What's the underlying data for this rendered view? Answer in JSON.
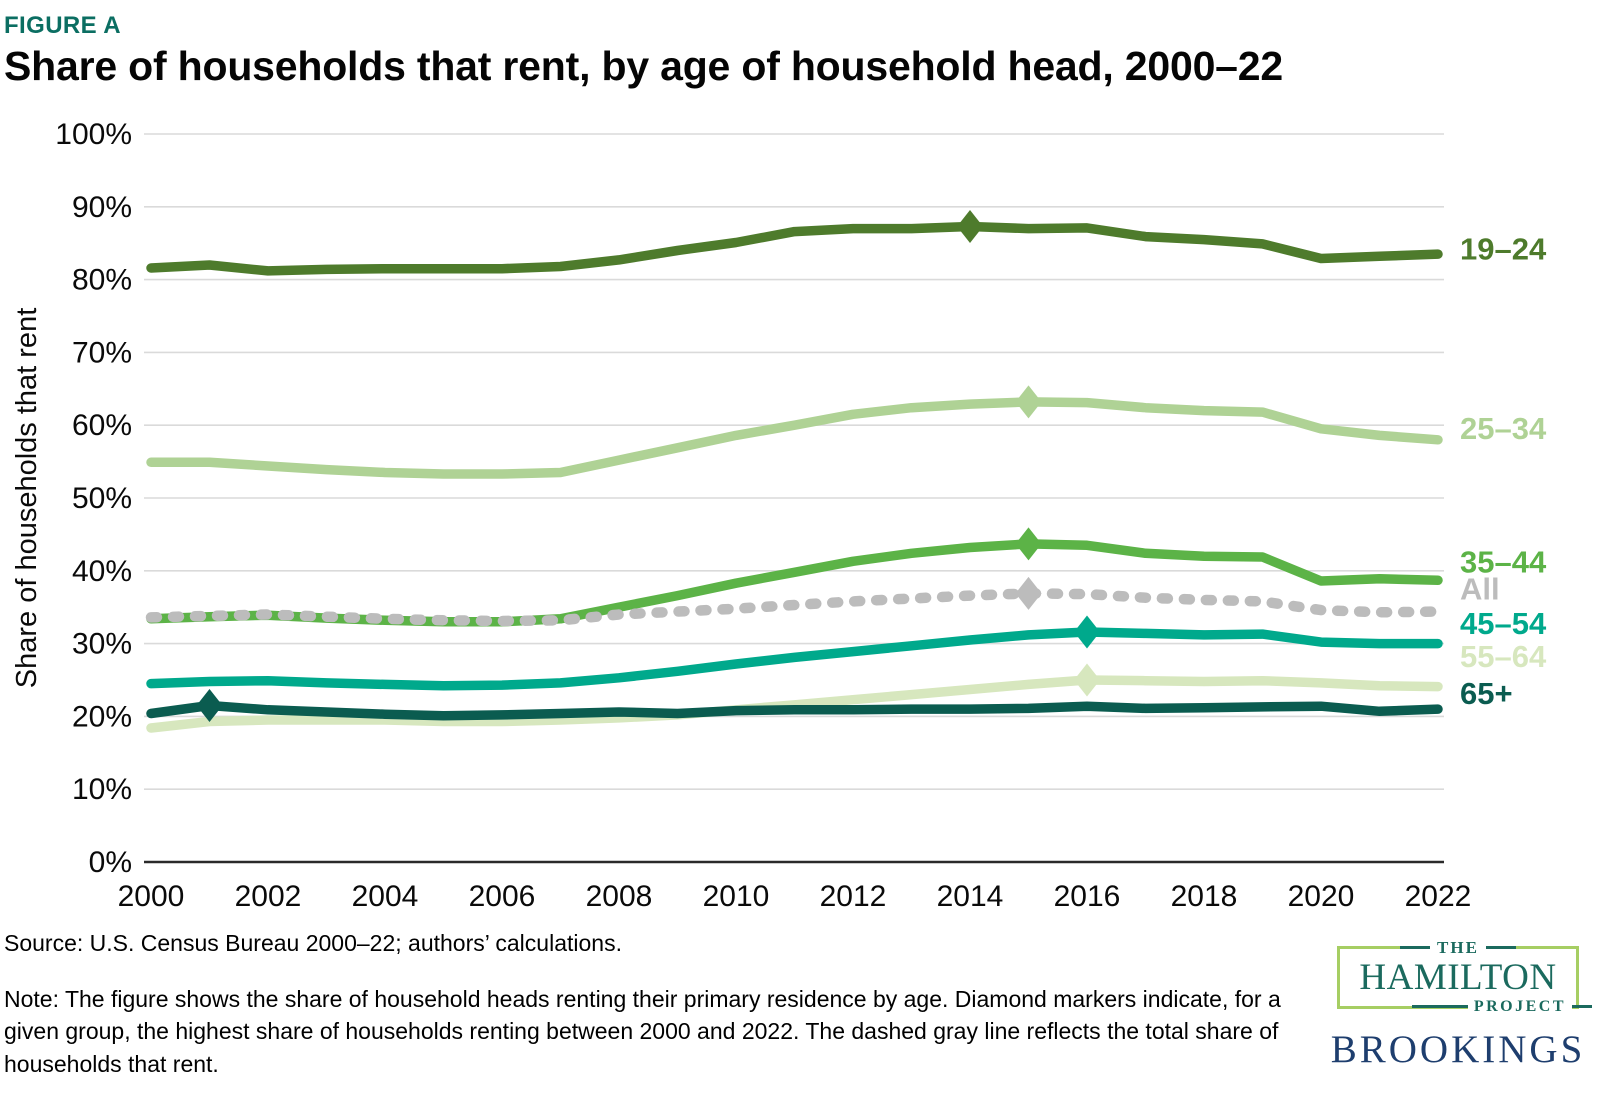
{
  "header": {
    "figure_label": "FIGURE A",
    "title": "Share of households that rent, by age of household head, 2000–22"
  },
  "colors": {
    "figure_label": "#0B6E62",
    "gridline": "#DADADA",
    "axis": "#2A2A2A",
    "tick_text": "#0A0A0A",
    "hamilton_teal": "#1B6A5E",
    "hamilton_border": "#A6CE63",
    "brookings_navy": "#1E3E6E"
  },
  "chart_data": {
    "type": "line",
    "title": "Share of households that rent, by age of household head, 2000–22",
    "ylabel": "Share of households that rent",
    "xlabel": "",
    "ylim": [
      0,
      100
    ],
    "y_ticks": [
      0,
      10,
      20,
      30,
      40,
      50,
      60,
      70,
      80,
      90,
      100
    ],
    "y_tick_suffix": "%",
    "grid": "horizontal",
    "legend_position": "right-edge-labels",
    "marker_note": "Diamond marks each group's highest share between 2000 and 2022",
    "years": [
      2000,
      2001,
      2002,
      2003,
      2004,
      2005,
      2006,
      2007,
      2008,
      2009,
      2010,
      2011,
      2012,
      2013,
      2014,
      2015,
      2016,
      2017,
      2018,
      2019,
      2020,
      2021,
      2022
    ],
    "x_ticks": [
      2000,
      2002,
      2004,
      2006,
      2008,
      2010,
      2012,
      2014,
      2016,
      2018,
      2020,
      2022
    ],
    "series": [
      {
        "id": "19-24",
        "name": "19–24",
        "color": "#4E7B2C",
        "dashed": false,
        "peak_year": 2014,
        "label_at": 84.3,
        "values": [
          81.6,
          82.0,
          81.2,
          81.4,
          81.5,
          81.5,
          81.5,
          81.8,
          82.7,
          84.0,
          85.1,
          86.6,
          87.0,
          87.0,
          87.3,
          87.0,
          87.1,
          85.9,
          85.5,
          84.9,
          82.9,
          83.2,
          83.5
        ]
      },
      {
        "id": "25-34",
        "name": "25–34",
        "color": "#AFD295",
        "dashed": false,
        "peak_year": 2015,
        "label_at": 59.6,
        "values": [
          54.9,
          54.9,
          54.4,
          53.9,
          53.5,
          53.3,
          53.3,
          53.5,
          55.2,
          56.9,
          58.6,
          60.0,
          61.5,
          62.4,
          62.9,
          63.2,
          63.1,
          62.4,
          62.0,
          61.8,
          59.5,
          58.6,
          58.0
        ]
      },
      {
        "id": "35-44",
        "name": "35–44",
        "color": "#5CB347",
        "dashed": false,
        "peak_year": 2015,
        "label_at": 41.3,
        "values": [
          33.4,
          33.7,
          33.9,
          33.5,
          33.2,
          33.0,
          33.0,
          33.4,
          35.0,
          36.6,
          38.3,
          39.8,
          41.3,
          42.4,
          43.2,
          43.7,
          43.5,
          42.4,
          42.0,
          41.9,
          38.6,
          38.9,
          38.7
        ]
      },
      {
        "id": "all",
        "name": "All",
        "color": "#BCBCBC",
        "dashed": true,
        "peak_year": 2015,
        "label_at": 37.6,
        "values": [
          33.6,
          33.8,
          34.0,
          33.7,
          33.4,
          33.2,
          33.1,
          33.2,
          34.0,
          34.4,
          34.8,
          35.3,
          35.8,
          36.2,
          36.6,
          36.9,
          36.8,
          36.3,
          36.0,
          35.8,
          34.6,
          34.3,
          34.4
        ]
      },
      {
        "id": "55-64",
        "name": "55–64",
        "color": "#D7E7BE",
        "dashed": false,
        "peak_year": 2016,
        "label_at": 28.3,
        "values": [
          18.4,
          19.3,
          19.5,
          19.5,
          19.5,
          19.3,
          19.3,
          19.5,
          19.8,
          20.2,
          20.9,
          21.6,
          22.3,
          23.0,
          23.7,
          24.4,
          25.0,
          24.9,
          24.8,
          24.9,
          24.6,
          24.2,
          24.1
        ]
      },
      {
        "id": "45-54",
        "name": "45–54",
        "color": "#00A98C",
        "dashed": false,
        "peak_year": 2016,
        "label_at": 32.8,
        "values": [
          24.5,
          24.8,
          24.9,
          24.6,
          24.4,
          24.2,
          24.3,
          24.6,
          25.3,
          26.2,
          27.2,
          28.1,
          28.9,
          29.7,
          30.5,
          31.2,
          31.6,
          31.4,
          31.2,
          31.3,
          30.2,
          30.0,
          30.0
        ]
      },
      {
        "id": "65plus",
        "name": "65+",
        "color": "#0B5C50",
        "dashed": false,
        "peak_year": 2001,
        "label_at": 23.2,
        "values": [
          20.4,
          21.5,
          20.9,
          20.6,
          20.3,
          20.1,
          20.2,
          20.4,
          20.6,
          20.4,
          20.8,
          20.9,
          20.9,
          21.0,
          21.0,
          21.1,
          21.4,
          21.1,
          21.2,
          21.3,
          21.4,
          20.7,
          21.0
        ]
      }
    ]
  },
  "footer": {
    "source": "Source: U.S. Census Bureau 2000–22; authors’ calculations.",
    "note": "Note: The figure shows the share of household heads renting their primary residence by age. Diamond markers indicate, for a given group, the highest share of households renting between 2000 and 2022. The dashed gray line reflects the total share of households that rent.",
    "logos": {
      "hamilton": {
        "the": "THE",
        "name": "HAMILTON",
        "project": "PROJECT"
      },
      "brookings": "BROOKINGS"
    }
  }
}
